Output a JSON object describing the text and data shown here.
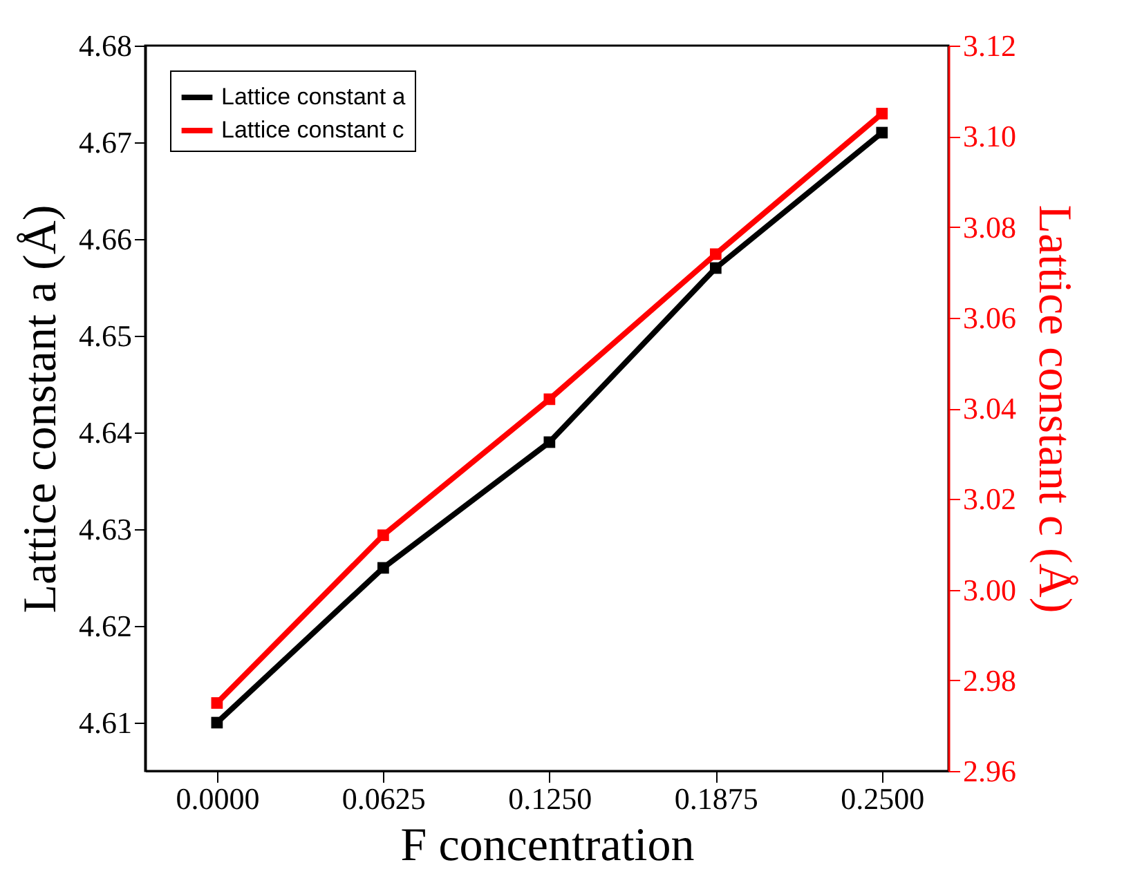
{
  "chart_data": {
    "type": "line",
    "xlabel": "F concentration",
    "ylabel": "Lattice constant a (Å)",
    "y2label": "Lattice constant c (Å)",
    "x": [
      0,
      0.0625,
      0.125,
      0.1875,
      0.25
    ],
    "xlim": [
      -0.027,
      0.275
    ],
    "xticks": [
      {
        "value": 0,
        "label": "0.0000"
      },
      {
        "value": 0.0625,
        "label": "0.0625"
      },
      {
        "value": 0.125,
        "label": "0.1250"
      },
      {
        "value": 0.1875,
        "label": "0.1875"
      },
      {
        "value": 0.25,
        "label": "0.2500"
      }
    ],
    "ylim": [
      4.605,
      4.68
    ],
    "yticks": [
      4.61,
      4.62,
      4.63,
      4.64,
      4.65,
      4.66,
      4.67,
      4.68
    ],
    "y2lim": [
      2.96,
      3.12
    ],
    "y2ticks": [
      {
        "value": 2.96,
        "label": "2.96"
      },
      {
        "value": 2.98,
        "label": "2.98"
      },
      {
        "value": 3,
        "label": "3.00"
      },
      {
        "value": 3.02,
        "label": "3.02"
      },
      {
        "value": 3.04,
        "label": "3.04"
      },
      {
        "value": 3.06,
        "label": "3.06"
      },
      {
        "value": 3.08,
        "label": "3.08"
      },
      {
        "value": 3.1,
        "label": "3.10"
      },
      {
        "value": 3.12,
        "label": "3.12"
      }
    ],
    "series": [
      {
        "name": "Lattice constant a",
        "color": "#000000",
        "values": [
          4.61,
          4.626,
          4.639,
          4.657,
          4.671
        ]
      },
      {
        "name": "Lattice constant c",
        "color": "#ff0000",
        "axis": "y2",
        "values": [
          2.975,
          3.012,
          3.042,
          3.074,
          3.105
        ]
      }
    ],
    "marker": "square",
    "line_style": "solid",
    "legend": "top left",
    "grid": false
  }
}
